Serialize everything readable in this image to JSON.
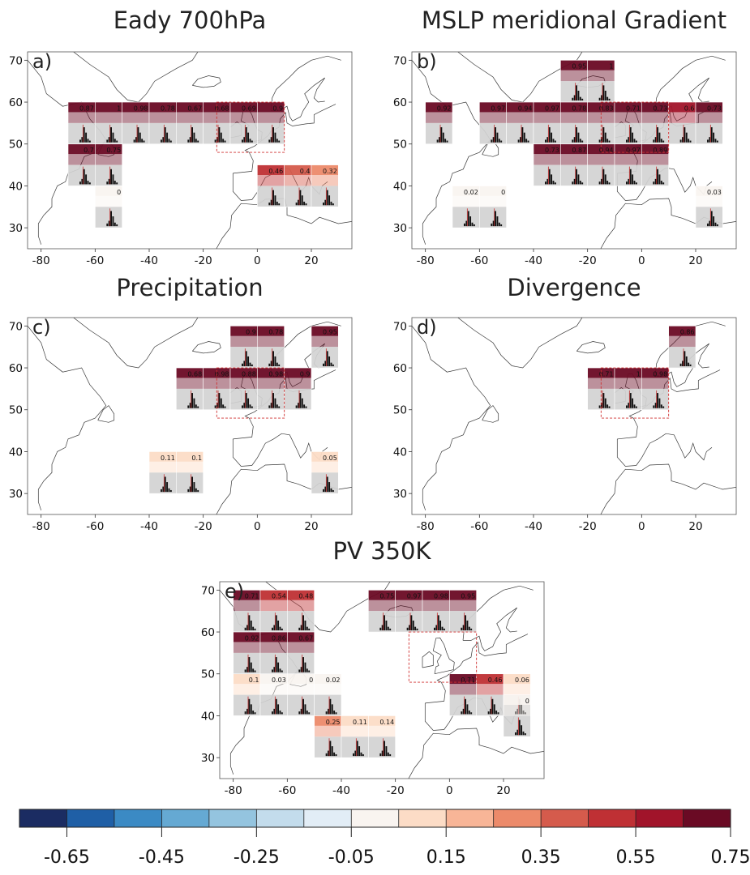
{
  "panels": [
    {
      "id": "a",
      "label": "a)",
      "title": "Eady 700hPa",
      "x_ticks": [
        -80,
        -60,
        -40,
        -20,
        0,
        20
      ],
      "y_ticks": [
        30,
        40,
        50,
        60,
        70
      ],
      "region": {
        "lon": [
          -15,
          10
        ],
        "lat": [
          48,
          60
        ]
      },
      "cells": [
        {
          "lon": -70,
          "lat": 55,
          "v": 0.87
        },
        {
          "lon": -60,
          "lat": 55,
          "v": 1
        },
        {
          "lon": -50,
          "lat": 55,
          "v": 0.98
        },
        {
          "lon": -40,
          "lat": 55,
          "v": 0.78
        },
        {
          "lon": -30,
          "lat": 55,
          "v": 0.67
        },
        {
          "lon": -20,
          "lat": 55,
          "v": 0.68
        },
        {
          "lon": -10,
          "lat": 55,
          "v": 0.69
        },
        {
          "lon": 0,
          "lat": 55,
          "v": 0.9
        },
        {
          "lon": -70,
          "lat": 45,
          "v": 0.7
        },
        {
          "lon": -60,
          "lat": 45,
          "v": 0.75
        },
        {
          "lon": -60,
          "lat": 35,
          "v": 0
        },
        {
          "lon": 0,
          "lat": 40,
          "v": 0.46
        },
        {
          "lon": 10,
          "lat": 40,
          "v": 0.4
        },
        {
          "lon": 20,
          "lat": 40,
          "v": 0.32
        }
      ]
    },
    {
      "id": "b",
      "label": "b)",
      "title": "MSLP meridional Gradient",
      "x_ticks": [
        -80,
        -60,
        -40,
        -20,
        0,
        20
      ],
      "y_ticks": [
        30,
        40,
        50,
        60,
        70
      ],
      "region": {
        "lon": [
          -15,
          10
        ],
        "lat": [
          48,
          60
        ]
      },
      "cells": [
        {
          "lon": -30,
          "lat": 65,
          "v": 0.95
        },
        {
          "lon": -20,
          "lat": 65,
          "v": 1
        },
        {
          "lon": -80,
          "lat": 55,
          "v": 0.92
        },
        {
          "lon": -60,
          "lat": 55,
          "v": 0.97
        },
        {
          "lon": -50,
          "lat": 55,
          "v": 0.94
        },
        {
          "lon": -40,
          "lat": 55,
          "v": 0.97
        },
        {
          "lon": -30,
          "lat": 55,
          "v": 0.78
        },
        {
          "lon": -20,
          "lat": 55,
          "v": 0.83
        },
        {
          "lon": -10,
          "lat": 55,
          "v": 0.71
        },
        {
          "lon": 0,
          "lat": 55,
          "v": 0.73
        },
        {
          "lon": 10,
          "lat": 55,
          "v": 0.6
        },
        {
          "lon": 20,
          "lat": 55,
          "v": 0.73
        },
        {
          "lon": -40,
          "lat": 45,
          "v": 0.73
        },
        {
          "lon": -30,
          "lat": 45,
          "v": 0.87
        },
        {
          "lon": -20,
          "lat": 45,
          "v": 0.94
        },
        {
          "lon": -10,
          "lat": 45,
          "v": 0.97
        },
        {
          "lon": 0,
          "lat": 45,
          "v": 0.89
        },
        {
          "lon": -70,
          "lat": 35,
          "v": 0.02
        },
        {
          "lon": -60,
          "lat": 35,
          "v": 0
        },
        {
          "lon": 20,
          "lat": 35,
          "v": 0.03
        }
      ]
    },
    {
      "id": "c",
      "label": "c)",
      "title": "Precipitation",
      "x_ticks": [
        -80,
        -60,
        -40,
        -20,
        0,
        20
      ],
      "y_ticks": [
        30,
        40,
        50,
        60,
        70
      ],
      "region": {
        "lon": [
          -15,
          10
        ],
        "lat": [
          48,
          60
        ]
      },
      "cells": [
        {
          "lon": -10,
          "lat": 65,
          "v": 0.9
        },
        {
          "lon": 0,
          "lat": 65,
          "v": 0.78
        },
        {
          "lon": 20,
          "lat": 65,
          "v": 0.95
        },
        {
          "lon": -30,
          "lat": 55,
          "v": 0.68
        },
        {
          "lon": -20,
          "lat": 55,
          "v": 0.98
        },
        {
          "lon": -10,
          "lat": 55,
          "v": 0.88
        },
        {
          "lon": 0,
          "lat": 55,
          "v": 0.98
        },
        {
          "lon": 10,
          "lat": 55,
          "v": 0.9
        },
        {
          "lon": -40,
          "lat": 35,
          "v": 0.11
        },
        {
          "lon": -30,
          "lat": 35,
          "v": 0.1
        },
        {
          "lon": 20,
          "lat": 35,
          "v": 0.05
        }
      ]
    },
    {
      "id": "d",
      "label": "d)",
      "title": "Divergence",
      "x_ticks": [
        -80,
        -60,
        -40,
        -20,
        0,
        20
      ],
      "y_ticks": [
        30,
        40,
        50,
        60,
        70
      ],
      "region": {
        "lon": [
          -15,
          10
        ],
        "lat": [
          48,
          60
        ]
      },
      "cells": [
        {
          "lon": 10,
          "lat": 65,
          "v": 0.86
        },
        {
          "lon": -20,
          "lat": 55,
          "v": 0.71
        },
        {
          "lon": -10,
          "lat": 55,
          "v": 1
        },
        {
          "lon": 0,
          "lat": 55,
          "v": 0.98
        }
      ]
    },
    {
      "id": "e",
      "label": "e)",
      "title": "PV 350K",
      "x_ticks": [
        -80,
        -60,
        -40,
        -20,
        0,
        20
      ],
      "y_ticks": [
        30,
        40,
        50,
        60,
        70
      ],
      "region": {
        "lon": [
          -15,
          10
        ],
        "lat": [
          48,
          60
        ]
      },
      "cells": [
        {
          "lon": -80,
          "lat": 65,
          "v": 0.71
        },
        {
          "lon": -70,
          "lat": 65,
          "v": 0.54
        },
        {
          "lon": -60,
          "lat": 65,
          "v": 0.48
        },
        {
          "lon": -30,
          "lat": 65,
          "v": 0.75
        },
        {
          "lon": -20,
          "lat": 65,
          "v": 0.97
        },
        {
          "lon": -10,
          "lat": 65,
          "v": 0.98
        },
        {
          "lon": 0,
          "lat": 65,
          "v": 0.95
        },
        {
          "lon": -80,
          "lat": 55,
          "v": 0.92
        },
        {
          "lon": -70,
          "lat": 55,
          "v": 0.86
        },
        {
          "lon": -60,
          "lat": 55,
          "v": 0.67
        },
        {
          "lon": -80,
          "lat": 45,
          "v": 0.1
        },
        {
          "lon": -70,
          "lat": 45,
          "v": 0.03
        },
        {
          "lon": -60,
          "lat": 45,
          "v": 0
        },
        {
          "lon": -50,
          "lat": 45,
          "v": 0.02
        },
        {
          "lon": 0,
          "lat": 45,
          "v": 0.71
        },
        {
          "lon": 10,
          "lat": 45,
          "v": 0.46
        },
        {
          "lon": 20,
          "lat": 45,
          "v": 0.06
        },
        {
          "lon": -50,
          "lat": 35,
          "v": 0.25
        },
        {
          "lon": -40,
          "lat": 35,
          "v": 0.11
        },
        {
          "lon": -30,
          "lat": 35,
          "v": 0.14
        },
        {
          "lon": 20,
          "lat": 40,
          "v": 0
        }
      ]
    }
  ],
  "colorbar": {
    "ticks": [
      "-0.65",
      "-0.45",
      "-0.25",
      "-0.05",
      "0.15",
      "0.35",
      "0.55",
      "0.75"
    ],
    "colors": [
      "#1b2c62",
      "#1f5fa6",
      "#3b8ac4",
      "#65a9d3",
      "#94c4df",
      "#c3dcec",
      "#e2edf6",
      "#f9f4f0",
      "#fcdcc6",
      "#f8b597",
      "#ec8a6a",
      "#d55b4c",
      "#bf3034",
      "#a1142a",
      "#6a0a24"
    ]
  },
  "chart_data": [
    {
      "type": "heatmap",
      "title": "Eady 700hPa",
      "panel": "a)",
      "x_range": [
        -85,
        35
      ],
      "y_range": [
        25,
        72
      ],
      "x_ticks": [
        -80,
        -60,
        -40,
        -20,
        0,
        20
      ],
      "y_ticks": [
        30,
        40,
        50,
        60,
        70
      ],
      "values": [
        0.87,
        1,
        0.98,
        0.78,
        0.67,
        0.68,
        0.69,
        0.9,
        0.7,
        0.75,
        0,
        0.46,
        0.4,
        0.32
      ]
    },
    {
      "type": "heatmap",
      "title": "MSLP meridional Gradient",
      "panel": "b)",
      "x_range": [
        -85,
        35
      ],
      "y_range": [
        25,
        72
      ],
      "x_ticks": [
        -80,
        -60,
        -40,
        -20,
        0,
        20
      ],
      "y_ticks": [
        30,
        40,
        50,
        60,
        70
      ],
      "values": [
        0.95,
        1,
        0.92,
        0.97,
        0.94,
        0.97,
        0.78,
        0.83,
        0.71,
        0.73,
        0.6,
        0.73,
        0.73,
        0.87,
        0.94,
        0.97,
        0.89,
        0.02,
        0,
        0.03
      ]
    },
    {
      "type": "heatmap",
      "title": "Precipitation",
      "panel": "c)",
      "x_range": [
        -85,
        35
      ],
      "y_range": [
        25,
        72
      ],
      "x_ticks": [
        -80,
        -60,
        -40,
        -20,
        0,
        20
      ],
      "y_ticks": [
        30,
        40,
        50,
        60,
        70
      ],
      "values": [
        0.9,
        0.78,
        0.95,
        0.68,
        0.98,
        0.88,
        0.98,
        0.9,
        0.11,
        0.1,
        0.05
      ]
    },
    {
      "type": "heatmap",
      "title": "Divergence",
      "panel": "d)",
      "x_range": [
        -85,
        35
      ],
      "y_range": [
        25,
        72
      ],
      "x_ticks": [
        -80,
        -60,
        -40,
        -20,
        0,
        20
      ],
      "y_ticks": [
        30,
        40,
        50,
        60,
        70
      ],
      "values": [
        0.86,
        0.71,
        1,
        0.98
      ]
    },
    {
      "type": "heatmap",
      "title": "PV 350K",
      "panel": "e)",
      "x_range": [
        -85,
        35
      ],
      "y_range": [
        25,
        72
      ],
      "x_ticks": [
        -80,
        -60,
        -40,
        -20,
        0,
        20
      ],
      "y_ticks": [
        30,
        40,
        50,
        60,
        70
      ],
      "values": [
        0.71,
        0.54,
        0.48,
        0.75,
        0.97,
        0.98,
        0.95,
        0.92,
        0.86,
        0.67,
        0.1,
        0.03,
        0,
        0.02,
        0.71,
        0.46,
        0.06,
        0.25,
        0.11,
        0.14,
        0
      ]
    }
  ]
}
